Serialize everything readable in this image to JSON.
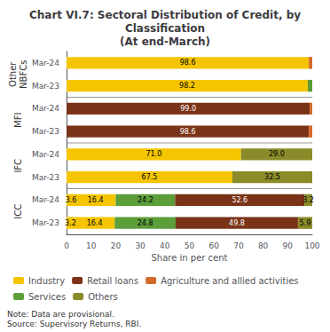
{
  "chart_data": {
    "type": "bar",
    "orientation": "horizontal",
    "stacked": true,
    "data_labels": true,
    "grid": false,
    "legend": "bottom",
    "title": "Chart VI.7: Sectoral Distribution of Credit, by\nClassification\n(At end-March)",
    "xlabel": "Share in per cent",
    "note": "Note: Data are provisional.\nSource: Supervisory Returns, RBI.",
    "xlim": [
      0,
      100
    ],
    "xticks": [
      0,
      10,
      20,
      30,
      40,
      50,
      60,
      70,
      80,
      90,
      100
    ],
    "categories": [
      "Mar-23",
      "Mar-24",
      "Mar-23",
      "Mar-24",
      "Mar-23",
      "Mar-24",
      "Mar-23",
      "Mar-24"
    ],
    "groups": [
      "ICC",
      "ICC",
      "IFC",
      "IFC",
      "MFI",
      "MFI",
      "Other\nNBFCs",
      "Other\nNBFCs"
    ],
    "series": [
      {
        "name": "Industry",
        "color": "#F5C500"
      },
      {
        "name": "Retail loans",
        "color": "#7B3318"
      },
      {
        "name": "Agriculture and allied activities",
        "color": "#D4692A"
      },
      {
        "name": "Services",
        "color": "#5B9E3A"
      },
      {
        "name": "Others",
        "color": "#8B8B2A"
      }
    ],
    "bars": [
      {
        "series": [
          "Industry",
          "Industry",
          "Services",
          "Retail loans",
          "Others"
        ],
        "values": [
          3.2,
          16.4,
          24.8,
          49.8,
          5.9
        ],
        "value_labels": [
          "3.2",
          "16.4",
          "24.8",
          "49.8",
          "5.9"
        ]
      },
      {
        "series": [
          "Industry",
          "Industry",
          "Services",
          "Retail loans",
          "Others"
        ],
        "values": [
          3.6,
          16.4,
          24.2,
          52.6,
          3.2
        ],
        "value_labels": [
          "3.6",
          "16.4",
          "24.2",
          "52.6",
          "3.2"
        ]
      },
      {
        "series": [
          "Industry",
          "Others"
        ],
        "values": [
          67.5,
          32.5
        ],
        "value_labels": [
          "67.5",
          "32.5"
        ]
      },
      {
        "series": [
          "Industry",
          "Others"
        ],
        "values": [
          71.0,
          29.0
        ],
        "value_labels": [
          "71.0",
          "29.0"
        ]
      },
      {
        "series": [
          "Retail loans",
          "Agriculture and allied activities"
        ],
        "values": [
          98.6,
          1.4
        ],
        "value_labels": [
          "98.6",
          null
        ]
      },
      {
        "series": [
          "Retail loans",
          "Agriculture and allied activities"
        ],
        "values": [
          99.0,
          1.0
        ],
        "value_labels": [
          "99.0",
          null
        ]
      },
      {
        "series": [
          "Industry",
          "Services"
        ],
        "values": [
          98.2,
          1.8
        ],
        "value_labels": [
          "98.2",
          null
        ]
      },
      {
        "series": [
          "Industry",
          "Agriculture and allied activities"
        ],
        "values": [
          98.6,
          1.4
        ],
        "value_labels": [
          "98.6",
          null
        ]
      }
    ]
  }
}
